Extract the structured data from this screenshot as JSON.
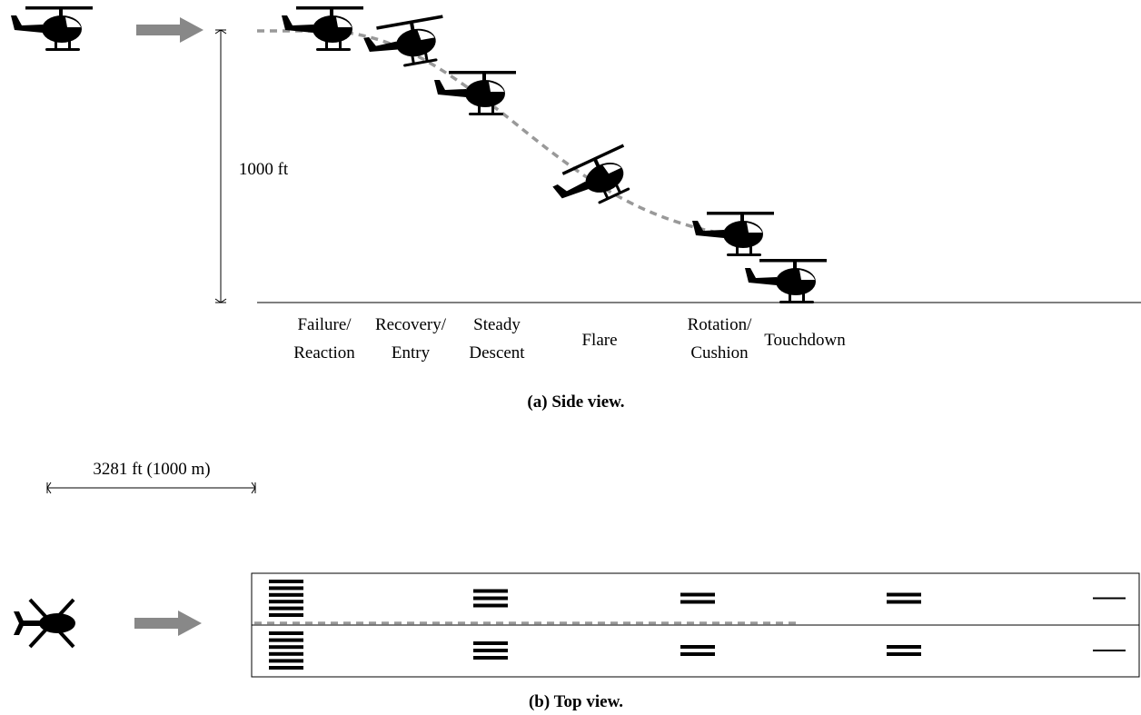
{
  "side_view": {
    "height_label": "1000 ft",
    "phases": [
      [
        "Failure/",
        "Reaction"
      ],
      [
        "Recovery/",
        "Entry"
      ],
      [
        "Steady",
        "Descent"
      ],
      [
        "Flare"
      ],
      [
        "Rotation/",
        "Cushion"
      ],
      [
        "Touchdown"
      ]
    ],
    "caption": "(a) Side view."
  },
  "top_view": {
    "distance_label": "3281 ft (1000 m)",
    "caption": "(b) Top view."
  }
}
